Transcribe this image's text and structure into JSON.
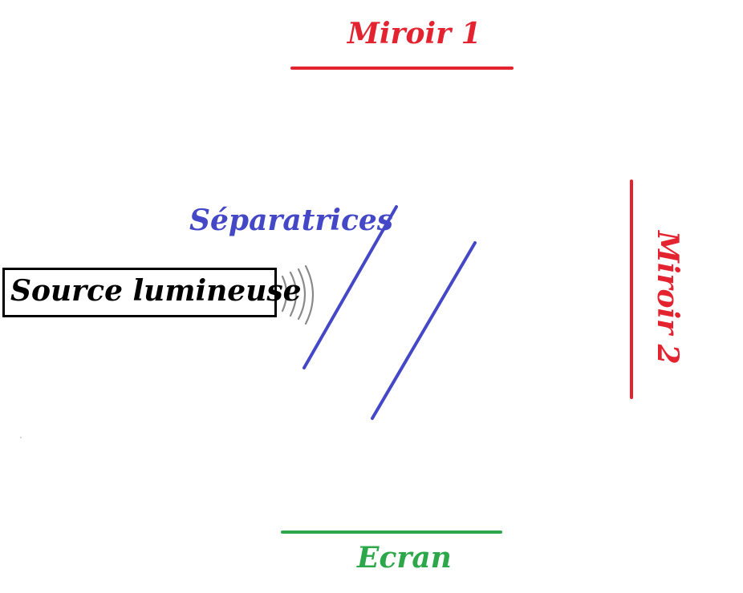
{
  "labels": {
    "mirror1": "Miroir 1",
    "mirror2": "Miroir  2",
    "separatrices": "Séparatrices",
    "source": "Source lumineuse",
    "screen": "Ecran"
  },
  "colors": {
    "mirror": "#e32430",
    "separator": "#4548c6",
    "screen": "#2ca84a",
    "source_border": "#000000",
    "waves": "#8a8a8a"
  }
}
